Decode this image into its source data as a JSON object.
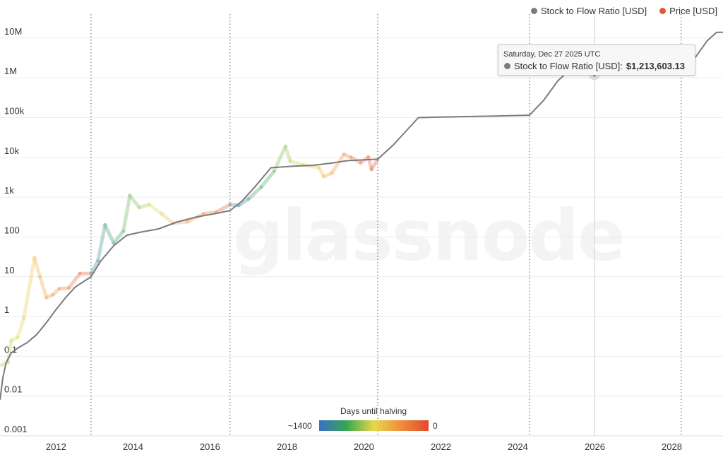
{
  "chart_data": {
    "type": "line",
    "title": "",
    "xlabel": "",
    "ylabel": "",
    "y_scale": "log",
    "ylim": [
      0.001,
      40000000
    ],
    "xlim": [
      "2010-07-18",
      "2029-05-01"
    ],
    "x_ticks": [
      "2012",
      "2014",
      "2016",
      "2018",
      "2020",
      "2022",
      "2024",
      "2026",
      "2028"
    ],
    "y_ticks": [
      {
        "value": 0.001,
        "label": "0.001"
      },
      {
        "value": 0.01,
        "label": "0.01"
      },
      {
        "value": 0.1,
        "label": "0.1"
      },
      {
        "value": 1,
        "label": "1"
      },
      {
        "value": 10,
        "label": "10"
      },
      {
        "value": 100,
        "label": "100"
      },
      {
        "value": 1000,
        "label": "1k"
      },
      {
        "value": 10000,
        "label": "10k"
      },
      {
        "value": 100000,
        "label": "100k"
      },
      {
        "value": 1000000,
        "label": "1M"
      },
      {
        "value": 10000000,
        "label": "10M"
      }
    ],
    "halving_lines": [
      "2012-11-28",
      "2016-07-09",
      "2020-05-11",
      "2024-04-20",
      "2028-03-30"
    ],
    "grid": true,
    "legend_position": "top-right",
    "series": [
      {
        "name": "Stock to Flow Ratio [USD]",
        "color": "#7b7b7b",
        "points": [
          [
            "2010-07-18",
            0.008
          ],
          [
            "2010-08-15",
            0.03
          ],
          [
            "2010-09-15",
            0.07
          ],
          [
            "2010-11-01",
            0.12
          ],
          [
            "2011-01-01",
            0.16
          ],
          [
            "2011-04-01",
            0.22
          ],
          [
            "2011-07-01",
            0.35
          ],
          [
            "2011-10-01",
            0.7
          ],
          [
            "2012-01-01",
            1.5
          ],
          [
            "2012-04-01",
            3.0
          ],
          [
            "2012-07-01",
            5.5
          ],
          [
            "2012-11-28",
            10
          ],
          [
            "2013-03-01",
            25
          ],
          [
            "2013-07-01",
            60
          ],
          [
            "2013-11-01",
            110
          ],
          [
            "2014-03-01",
            130
          ],
          [
            "2014-09-01",
            160
          ],
          [
            "2015-03-01",
            240
          ],
          [
            "2015-09-01",
            320
          ],
          [
            "2016-03-01",
            390
          ],
          [
            "2016-07-09",
            460
          ],
          [
            "2016-11-01",
            800
          ],
          [
            "2017-03-01",
            1800
          ],
          [
            "2017-08-01",
            5500
          ],
          [
            "2018-03-01",
            6000
          ],
          [
            "2018-09-01",
            6300
          ],
          [
            "2019-03-01",
            7200
          ],
          [
            "2019-08-01",
            8300
          ],
          [
            "2020-05-11",
            9000
          ],
          [
            "2020-10-01",
            20000
          ],
          [
            "2021-02-01",
            45000
          ],
          [
            "2021-06-01",
            100000
          ],
          [
            "2022-06-01",
            105000
          ],
          [
            "2023-06-01",
            110000
          ],
          [
            "2024-04-20",
            115000
          ],
          [
            "2024-09-01",
            270000
          ],
          [
            "2025-01-15",
            850000
          ],
          [
            "2025-03-20",
            1200000
          ],
          [
            "2025-12-27",
            1213603
          ],
          [
            "2027-01-01",
            1260000
          ],
          [
            "2028-03-30",
            1320000
          ],
          [
            "2028-08-01",
            3000000
          ],
          [
            "2028-12-01",
            8500000
          ],
          [
            "2029-03-01",
            14000000
          ],
          [
            "2029-05-01",
            14000000
          ]
        ]
      },
      {
        "name": "Price [USD]",
        "color": "#e3583a",
        "color_encoding": "Days until halving",
        "points": [
          [
            "2010-08-01",
            0.06
          ],
          [
            "2010-10-01",
            0.07
          ],
          [
            "2010-11-01",
            0.25
          ],
          [
            "2011-01-01",
            0.3
          ],
          [
            "2011-03-01",
            0.9
          ],
          [
            "2011-06-10",
            30
          ],
          [
            "2011-08-01",
            10
          ],
          [
            "2011-10-01",
            3
          ],
          [
            "2011-12-01",
            3.5
          ],
          [
            "2012-02-01",
            5
          ],
          [
            "2012-05-01",
            5.2
          ],
          [
            "2012-08-15",
            12
          ],
          [
            "2012-11-28",
            12
          ],
          [
            "2013-02-01",
            25
          ],
          [
            "2013-04-10",
            200
          ],
          [
            "2013-07-01",
            70
          ],
          [
            "2013-10-01",
            140
          ],
          [
            "2013-12-01",
            1100
          ],
          [
            "2014-03-01",
            550
          ],
          [
            "2014-06-01",
            650
          ],
          [
            "2014-10-01",
            380
          ],
          [
            "2015-01-15",
            220
          ],
          [
            "2015-06-01",
            240
          ],
          [
            "2015-11-01",
            380
          ],
          [
            "2016-03-01",
            420
          ],
          [
            "2016-07-09",
            650
          ],
          [
            "2016-10-01",
            620
          ],
          [
            "2017-01-01",
            900
          ],
          [
            "2017-05-01",
            1800
          ],
          [
            "2017-09-01",
            4500
          ],
          [
            "2017-12-17",
            19000
          ],
          [
            "2018-02-01",
            8000
          ],
          [
            "2018-06-01",
            6500
          ],
          [
            "2018-11-01",
            5500
          ],
          [
            "2018-12-15",
            3300
          ],
          [
            "2019-03-01",
            4000
          ],
          [
            "2019-06-26",
            12000
          ],
          [
            "2019-09-01",
            10000
          ],
          [
            "2019-12-01",
            7300
          ],
          [
            "2020-02-12",
            10200
          ],
          [
            "2020-03-13",
            5000
          ],
          [
            "2020-05-11",
            8800
          ]
        ]
      }
    ],
    "tooltip": {
      "date": "Saturday, Dec 27 2025 UTC",
      "series": "Stock to Flow Ratio [USD]",
      "x": "2025-12-27",
      "value": 1213603.13,
      "value_label": "$1,213,603.13"
    },
    "colorbar": {
      "title": "Days until halving",
      "min_label": "~1400",
      "max_label": "0",
      "colors": [
        "#3b6fc9",
        "#36a64f",
        "#e8d84a",
        "#f08c3c",
        "#e04a2f"
      ]
    }
  },
  "legend": {
    "s2f_label": "Stock to Flow Ratio [USD]",
    "price_label": "Price [USD]"
  },
  "tooltip_text": {
    "date": "Saturday, Dec 27 2025 UTC",
    "series_label": "Stock to Flow Ratio [USD]:",
    "value": "$1,213,603.13"
  },
  "colorbar_text": {
    "title": "Days until halving",
    "min": "~1400",
    "max": "0"
  },
  "watermark": "glassnode"
}
